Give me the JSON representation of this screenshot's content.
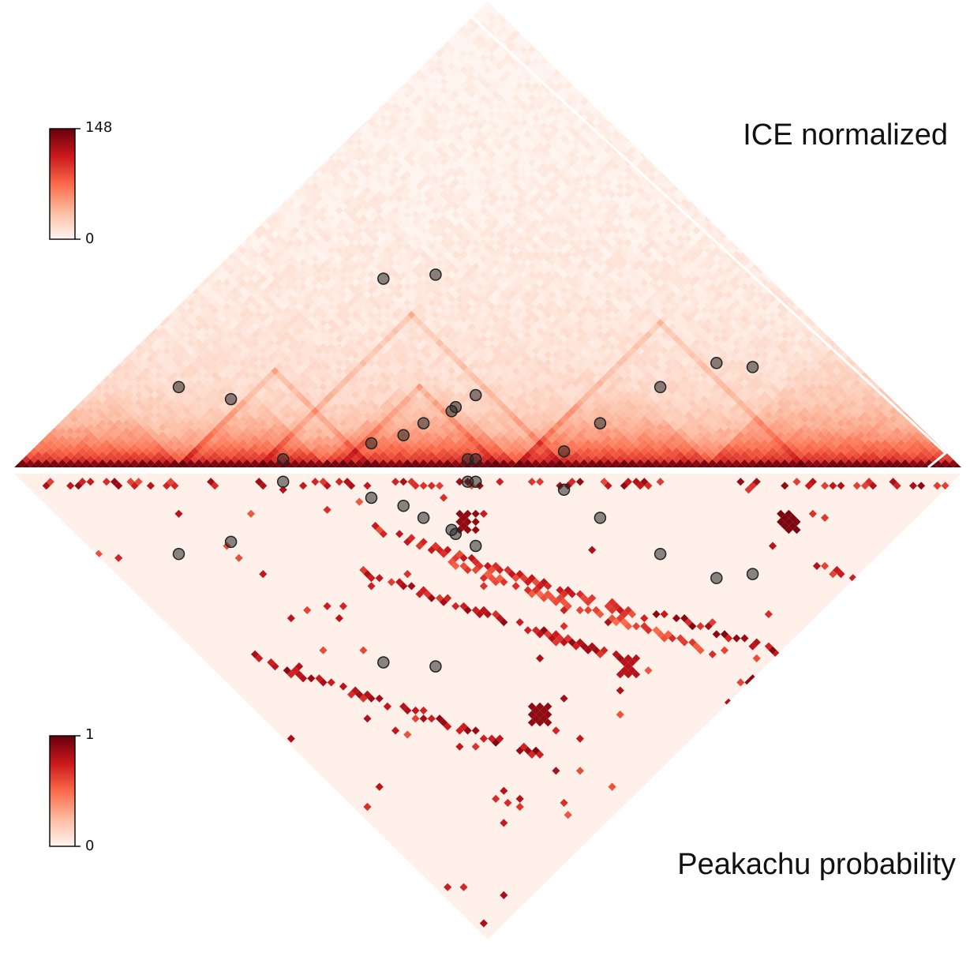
{
  "chart_data": [
    {
      "type": "heatmap",
      "subtype": "triangular-contact-map",
      "orientation": "upper",
      "title": "ICE normalized",
      "colormap": "Reds",
      "colorbar": {
        "min": 0,
        "max": 148,
        "tick_labels": [
          "148",
          "0"
        ]
      },
      "n_bins": 118,
      "features": {
        "diagonal_band_intensity": 148,
        "tad_domains": [
          [
            0,
            20
          ],
          [
            20,
            38
          ],
          [
            38,
            62
          ],
          [
            62,
            86
          ],
          [
            86,
            118
          ]
        ],
        "stripes": [
          [
            20,
            44
          ],
          [
            40,
            60
          ],
          [
            62,
            98
          ],
          [
            30,
            68
          ]
        ]
      },
      "loop_markers": [
        [
          10,
          30
        ],
        [
          18,
          35
        ],
        [
          22,
          69
        ],
        [
          28,
          76
        ],
        [
          32,
          34
        ],
        [
          41,
          47
        ],
        [
          44,
          52
        ],
        [
          45,
          56
        ],
        [
          47,
          62
        ],
        [
          47,
          61
        ],
        [
          48,
          66
        ],
        [
          55,
          57
        ],
        [
          56,
          58
        ],
        [
          66,
          70
        ],
        [
          67,
          78
        ],
        [
          70,
          90
        ],
        [
          74,
          100
        ],
        [
          79,
          104
        ]
      ]
    },
    {
      "type": "heatmap",
      "subtype": "triangular-probability-map",
      "orientation": "lower",
      "title": "Peakachu probability",
      "colormap": "Reds",
      "colorbar": {
        "min": 0,
        "max": 1,
        "tick_labels": [
          "1",
          "0"
        ]
      },
      "n_bins": 118,
      "features": {
        "stripes": [
          [
            10,
            60,
            0.95
          ],
          [
            33,
            60,
            0.9
          ],
          [
            64,
            100,
            0.95
          ],
          [
            90,
            115,
            0.85
          ],
          [
            40,
            56,
            0.8
          ],
          [
            45,
            70,
            0.7
          ]
        ],
        "hotspot_blobs": [
          [
            50,
            62,
            0.9
          ],
          [
            90,
            102,
            0.95
          ],
          [
            35,
            95,
            0.9
          ],
          [
            52,
            100,
            0.8
          ],
          [
            65,
            118,
            0.9
          ]
        ]
      },
      "loop_markers": [
        [
          10,
          30
        ],
        [
          18,
          35
        ],
        [
          22,
          69
        ],
        [
          28,
          76
        ],
        [
          32,
          34
        ],
        [
          41,
          47
        ],
        [
          44,
          52
        ],
        [
          45,
          56
        ],
        [
          47,
          62
        ],
        [
          47,
          61
        ],
        [
          48,
          66
        ],
        [
          55,
          57
        ],
        [
          56,
          58
        ],
        [
          66,
          70
        ],
        [
          67,
          78
        ],
        [
          70,
          90
        ],
        [
          74,
          100
        ],
        [
          79,
          104
        ]
      ]
    }
  ]
}
